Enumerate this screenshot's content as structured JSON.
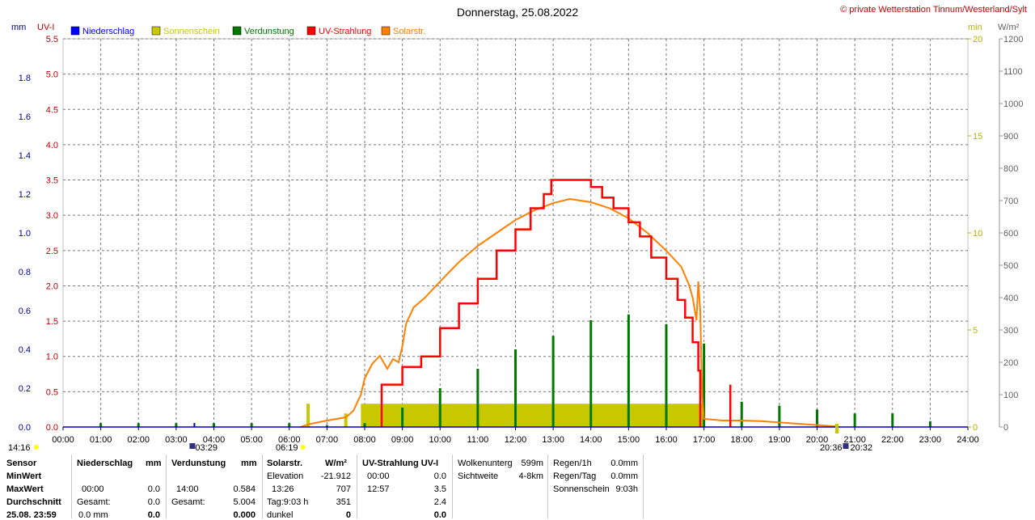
{
  "chart_data": {
    "type": "line",
    "title": "Donnerstag, 25.08.2022",
    "credit": "© private Wetterstation Tinnum/Westerland/Sylt",
    "legend": [
      {
        "name": "Niederschlag",
        "color": "#0000ff"
      },
      {
        "name": "Sonnenschein",
        "color": "#c8c800"
      },
      {
        "name": "Verdunstung",
        "color": "#007800"
      },
      {
        "name": "UV-Strahlung",
        "color": "#ff0000"
      },
      {
        "name": "Solarstr.",
        "color": "#ff8000"
      }
    ],
    "legend_placement": "top",
    "grid": true,
    "axes": {
      "mm": {
        "label": "mm",
        "side": "left",
        "color": "#0000a0",
        "range": [
          0,
          2.0
        ],
        "ticks": [
          "0.0",
          "0.2",
          "0.4",
          "0.6",
          "0.8",
          "1.0",
          "1.2",
          "1.4",
          "1.6",
          "1.8"
        ]
      },
      "uv": {
        "label": "UV-I",
        "side": "left",
        "color": "#c00000",
        "range": [
          0,
          5.5
        ],
        "ticks": [
          "0.0",
          "0.5",
          "1.0",
          "1.5",
          "2.0",
          "2.5",
          "3.0",
          "3.5",
          "4.0",
          "4.5",
          "5.0",
          "5.5"
        ]
      },
      "min": {
        "label": "min",
        "side": "right",
        "color": "#b4b400",
        "range": [
          0,
          20
        ],
        "ticks": [
          "0",
          "5",
          "10",
          "15",
          "20"
        ]
      },
      "wm2": {
        "label": "W/m²",
        "side": "right",
        "color": "#606060",
        "range": [
          0,
          1200
        ],
        "ticks": [
          "0",
          "100",
          "200",
          "300",
          "400",
          "500",
          "600",
          "700",
          "800",
          "900",
          "1000",
          "1100",
          "1200"
        ]
      }
    },
    "x_ticks": [
      "00:00",
      "01:00",
      "02:00",
      "03:00",
      "04:00",
      "05:00",
      "06:00",
      "07:00",
      "08:00",
      "09:00",
      "10:00",
      "11:00",
      "12:00",
      "13:00",
      "14:00",
      "15:00",
      "16:00",
      "17:00",
      "18:00",
      "19:00",
      "20:00",
      "21:00",
      "22:00",
      "23:00",
      "24:00"
    ],
    "x_range_hours": [
      0,
      24
    ],
    "markers": {
      "moon_phase": "14:16",
      "moonrise": "03:29",
      "sunrise": "06:19",
      "sunset_1": "20:36",
      "sunset_2": "20:32"
    },
    "series": [
      {
        "name": "Solarstr.",
        "axis": "wm2",
        "color": "#ff8000",
        "points": [
          [
            6.3,
            0
          ],
          [
            6.5,
            8
          ],
          [
            7,
            20
          ],
          [
            7.5,
            30
          ],
          [
            7.7,
            50
          ],
          [
            7.9,
            100
          ],
          [
            8,
            150
          ],
          [
            8.2,
            195
          ],
          [
            8.4,
            220
          ],
          [
            8.5,
            200
          ],
          [
            8.6,
            180
          ],
          [
            8.75,
            210
          ],
          [
            8.9,
            200
          ],
          [
            9,
            250
          ],
          [
            9.1,
            320
          ],
          [
            9.3,
            370
          ],
          [
            9.6,
            400
          ],
          [
            10,
            450
          ],
          [
            10.5,
            510
          ],
          [
            11,
            560
          ],
          [
            11.5,
            600
          ],
          [
            12,
            640
          ],
          [
            12.5,
            670
          ],
          [
            13,
            692
          ],
          [
            13.44,
            705
          ],
          [
            14,
            695
          ],
          [
            14.5,
            676
          ],
          [
            15,
            645
          ],
          [
            15.5,
            600
          ],
          [
            16,
            545
          ],
          [
            16.4,
            495
          ],
          [
            16.6,
            440
          ],
          [
            16.7,
            400
          ],
          [
            16.8,
            330
          ],
          [
            16.85,
            450
          ],
          [
            16.9,
            360
          ],
          [
            16.95,
            100
          ],
          [
            17,
            25
          ],
          [
            17.5,
            20
          ],
          [
            18,
            20
          ],
          [
            18.5,
            18
          ],
          [
            19,
            14
          ],
          [
            19.5,
            10
          ],
          [
            20,
            6
          ],
          [
            20.5,
            2
          ],
          [
            20.6,
            0
          ]
        ]
      },
      {
        "name": "UV-Strahlung",
        "axis": "uv",
        "color": "#ff0000",
        "points": [
          [
            8.45,
            0
          ],
          [
            8.45,
            0.6
          ],
          [
            9,
            0.85
          ],
          [
            9.5,
            1.0
          ],
          [
            10,
            1.4
          ],
          [
            10.5,
            1.75
          ],
          [
            11,
            2.1
          ],
          [
            11.5,
            2.5
          ],
          [
            12,
            2.8
          ],
          [
            12.4,
            3.1
          ],
          [
            12.75,
            3.3
          ],
          [
            12.95,
            3.5
          ],
          [
            13.8,
            3.5
          ],
          [
            14,
            3.4
          ],
          [
            14.3,
            3.25
          ],
          [
            14.6,
            3.1
          ],
          [
            15,
            2.9
          ],
          [
            15.3,
            2.7
          ],
          [
            15.6,
            2.4
          ],
          [
            16,
            2.1
          ],
          [
            16.3,
            1.8
          ],
          [
            16.5,
            1.55
          ],
          [
            16.7,
            1.2
          ],
          [
            16.85,
            0.8
          ],
          [
            16.9,
            0
          ]
        ],
        "spike": {
          "hour": 17.7,
          "value": 0.6
        }
      },
      {
        "name": "Verdunstung",
        "axis": "mm",
        "bars": [
          [
            1,
            0.02
          ],
          [
            2,
            0.02
          ],
          [
            3,
            0.02
          ],
          [
            4,
            0.02
          ],
          [
            5,
            0.02
          ],
          [
            6,
            0.02
          ],
          [
            7,
            0.01
          ],
          [
            8,
            0.02
          ],
          [
            9,
            0.1
          ],
          [
            10,
            0.2
          ],
          [
            11,
            0.3
          ],
          [
            12,
            0.4
          ],
          [
            13,
            0.47
          ],
          [
            14,
            0.55
          ],
          [
            15,
            0.58
          ],
          [
            16,
            0.53
          ],
          [
            17,
            0.43
          ],
          [
            18,
            0.13
          ],
          [
            19,
            0.11
          ],
          [
            20,
            0.09
          ],
          [
            21,
            0.07
          ],
          [
            22,
            0.07
          ],
          [
            23,
            0.03
          ]
        ]
      },
      {
        "name": "Sonnenschein",
        "axis": "min",
        "bars": [
          [
            6.5,
            1.2
          ],
          [
            7.5,
            0.7
          ]
        ],
        "block": {
          "from": 7.9,
          "to": 17,
          "value": 1.2
        }
      }
    ]
  },
  "table": {
    "row_labels": {
      "sensor": "Sensor",
      "min": "MinWert",
      "max": "MaxWert",
      "avg": "Durchschnitt",
      "date": "25.08. 23:59"
    },
    "niederschlag": {
      "head": "Niederschlag",
      "unit": "mm",
      "max_time": "00:00",
      "max_val": "0.0",
      "sum_label": "Gesamt:",
      "sum_val": "0.0",
      "last_val": "0.0 mm",
      "last_val2": "0.0"
    },
    "verdunstung": {
      "head": "Verdunstung",
      "unit": "mm",
      "max_time": "14:00",
      "max_val": "0.584",
      "sum_label": "Gesamt:",
      "sum_val": "5.004",
      "last_val": "0.000"
    },
    "solar": {
      "head": "Solarstr.",
      "unit": "W/m²",
      "elev_label": "Elevation",
      "elev_val": "-21.912",
      "max_time": "13:26",
      "max_val": "707",
      "day_label": "Tag:9:03 h",
      "day_val": "351",
      "dark_label": "dunkel",
      "dark_val": "0"
    },
    "uv": {
      "head": "UV-Strahlung UV-I",
      "min_time": "00:00",
      "min_val": "0.0",
      "max_time": "12:57",
      "max_val": "3.5",
      "avg_val": "2.4",
      "last_val": "0.0"
    },
    "wolken": {
      "label1": "Wolkenunterg",
      "val1": "599m",
      "label2": "Sichtweite",
      "val2": "4-8km"
    },
    "regen": {
      "label1": "Regen/1h",
      "val1": "0.0mm",
      "label2": "Regen/Tag",
      "val2": "0.0mm",
      "label3": "Sonnenschein",
      "val3": "9:03h"
    }
  }
}
